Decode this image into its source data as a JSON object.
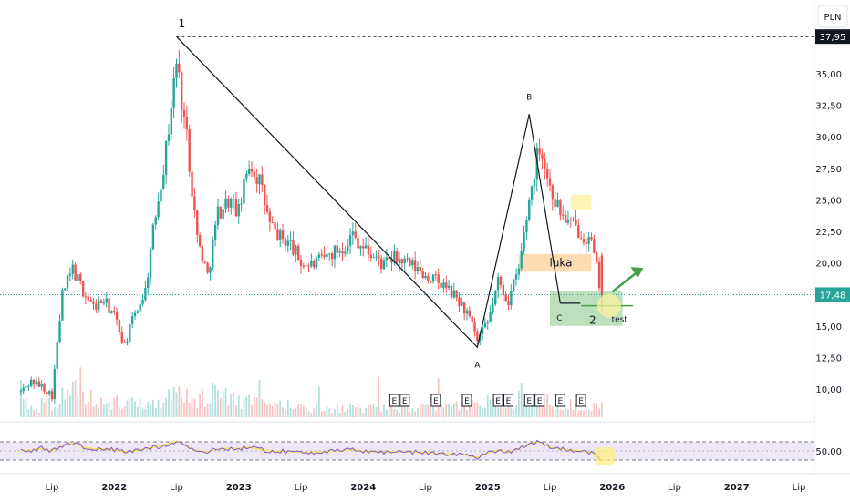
{
  "currency_label": "PLN",
  "colors": {
    "up": "#26a69a",
    "down": "#ef5350",
    "rsi_line": "#7e57c2",
    "rsi_ma": "#f5e35a",
    "rsi_band": "#ede7f6",
    "support_zone": "#a5d6a7",
    "arrow": "#43a047",
    "resistance_zone": "#fff3b0",
    "gap_zone": "#ffd7a8",
    "price_label_bg": "#131722",
    "price_line": "#26a69a"
  },
  "chart_data": {
    "type": "candlestick",
    "x_axis": {
      "tick_labels": [
        "Lip",
        "2022",
        "Lip",
        "2023",
        "Lip",
        "2024",
        "Lip",
        "2025",
        "Lip",
        "2026",
        "Lip",
        "2027",
        "Lip"
      ],
      "tick_dates": [
        "2021-07",
        "2022-01",
        "2022-07",
        "2023-01",
        "2023-07",
        "2024-01",
        "2024-07",
        "2025-01",
        "2025-07",
        "2026-01",
        "2026-07",
        "2027-01",
        "2027-07"
      ]
    },
    "y_axis": {
      "range": [
        8.5,
        39.5
      ],
      "tick_labels": [
        "10,00",
        "12,50",
        "15,00",
        "17,50",
        "20,00",
        "22,50",
        "25,00",
        "27,50",
        "30,00",
        "32,50",
        "35,00"
      ],
      "tick_values": [
        10,
        12.5,
        15,
        17.5,
        20,
        22.5,
        25,
        27.5,
        30,
        32.5,
        35
      ]
    },
    "current_price": {
      "value": 17.48,
      "label": "17,48"
    },
    "high_price": {
      "value": 37.95,
      "label": "37,95"
    },
    "price_path": [
      [
        "2021-04",
        9.8
      ],
      [
        "2021-05",
        10.6
      ],
      [
        "2021-06",
        10.2
      ],
      [
        "2021-07",
        9.5
      ],
      [
        "2021-08",
        17.5
      ],
      [
        "2021-09",
        19.5
      ],
      [
        "2021-10",
        17.8
      ],
      [
        "2021-11",
        16.5
      ],
      [
        "2021-12",
        17.0
      ],
      [
        "2022-01",
        15.8
      ],
      [
        "2022-02",
        13.5
      ],
      [
        "2022-03",
        16.0
      ],
      [
        "2022-04",
        17.8
      ],
      [
        "2022-05",
        24.0
      ],
      [
        "2022-06",
        29.0
      ],
      [
        "2022-07",
        36.0
      ],
      [
        "2022-08",
        30.0
      ],
      [
        "2022-09",
        22.0
      ],
      [
        "2022-10",
        19.0
      ],
      [
        "2022-11",
        24.0
      ],
      [
        "2022-12",
        25.0
      ],
      [
        "2023-01",
        24.0
      ],
      [
        "2023-02",
        28.0
      ],
      [
        "2023-03",
        26.5
      ],
      [
        "2023-04",
        23.0
      ],
      [
        "2023-05",
        22.0
      ],
      [
        "2023-06",
        21.5
      ],
      [
        "2023-07",
        20.0
      ],
      [
        "2023-08",
        19.8
      ],
      [
        "2023-09",
        20.2
      ],
      [
        "2023-10",
        20.8
      ],
      [
        "2023-11",
        21.2
      ],
      [
        "2023-12",
        22.3
      ],
      [
        "2024-01",
        21.2
      ],
      [
        "2024-02",
        20.5
      ],
      [
        "2024-03",
        19.8
      ],
      [
        "2024-04",
        20.4
      ],
      [
        "2024-05",
        20.0
      ],
      [
        "2024-06",
        19.6
      ],
      [
        "2024-07",
        19.0
      ],
      [
        "2024-08",
        18.6
      ],
      [
        "2024-09",
        18.0
      ],
      [
        "2024-10",
        17.2
      ],
      [
        "2024-11",
        16.0
      ],
      [
        "2024-12",
        13.8
      ],
      [
        "2025-01",
        15.2
      ],
      [
        "2025-02",
        18.5
      ],
      [
        "2025-03",
        17.0
      ],
      [
        "2025-04",
        19.5
      ],
      [
        "2025-05",
        25.0
      ],
      [
        "2025-06",
        29.5
      ],
      [
        "2025-07",
        26.0
      ],
      [
        "2025-08",
        24.0
      ],
      [
        "2025-09",
        23.0
      ],
      [
        "2025-10",
        22.5
      ],
      [
        "2025-11",
        21.5
      ],
      [
        "2025-12",
        17.48
      ]
    ],
    "volume": {
      "volumes_k": [
        0.4,
        0.3,
        0.5,
        0.3,
        1.0,
        0.8,
        0.6,
        0.5,
        0.4,
        0.5,
        0.6,
        0.4,
        0.5,
        0.6,
        0.7,
        0.8,
        0.7,
        0.6,
        0.8,
        0.7,
        0.6,
        0.5,
        0.5,
        0.4,
        0.4,
        0.4,
        0.4,
        0.3,
        0.3,
        0.3,
        0.3,
        0.3,
        0.3,
        0.3,
        0.3,
        0.3,
        0.3,
        0.3,
        0.3,
        0.3,
        0.3,
        0.3,
        0.4,
        0.4,
        0.4,
        0.5,
        0.4,
        0.5,
        0.8,
        0.7,
        0.5,
        0.4,
        0.4,
        0.4,
        0.3,
        0.4,
        0.6
      ],
      "earnings_markers": [
        "E",
        "E",
        "E",
        "E",
        "E",
        "E",
        "E",
        "E",
        "E",
        "E"
      ],
      "earnings_dates": [
        "2024-04",
        "2024-05",
        "2024-08",
        "2024-11",
        "2025-02",
        "2025-03",
        "2025-05",
        "2025-06",
        "2025-08",
        "2025-10"
      ]
    },
    "rsi": {
      "tick_label": "50,00",
      "tick_value": 50,
      "band": [
        30,
        70
      ],
      "values": [
        50,
        52,
        55,
        50,
        62,
        68,
        58,
        55,
        54,
        52,
        48,
        50,
        55,
        58,
        64,
        72,
        60,
        50,
        48,
        54,
        56,
        55,
        58,
        54,
        50,
        49,
        48,
        47,
        47,
        48,
        49,
        50,
        53,
        50,
        48,
        47,
        49,
        48,
        47,
        46,
        45,
        44,
        43,
        40,
        36,
        45,
        52,
        48,
        56,
        66,
        70,
        58,
        54,
        52,
        50,
        46,
        30
      ]
    }
  },
  "annotations": {
    "wave_1": "1",
    "wave_2": "2",
    "wave_a": "A",
    "wave_b": "B",
    "wave_c": "C",
    "gap_label": "luka",
    "test_label": "test"
  },
  "wave_points": {
    "p1": [
      "2022-07",
      37.95
    ],
    "a": [
      "2024-12",
      13.3
    ],
    "b": [
      "2025-05",
      31.8
    ],
    "c": [
      "2025-08",
      16.8
    ]
  },
  "zones": {
    "support": {
      "x0": "2025-07",
      "x1": "2026-02",
      "y0": 15.0,
      "y1": 17.8
    },
    "gap": {
      "x0": "2025-04",
      "x1": "2025-11",
      "y0": 19.3,
      "y1": 20.7
    },
    "resistance": {
      "x0": "2025-09",
      "x1": "2025-11",
      "y0": 24.2,
      "y1": 25.4
    },
    "test_line": {
      "x0": "2025-10",
      "x1": "2026-03",
      "y": 16.6
    },
    "arrow": {
      "from": [
        "2026-01",
        17.7
      ],
      "to": [
        "2026-04",
        19.6
      ]
    }
  }
}
